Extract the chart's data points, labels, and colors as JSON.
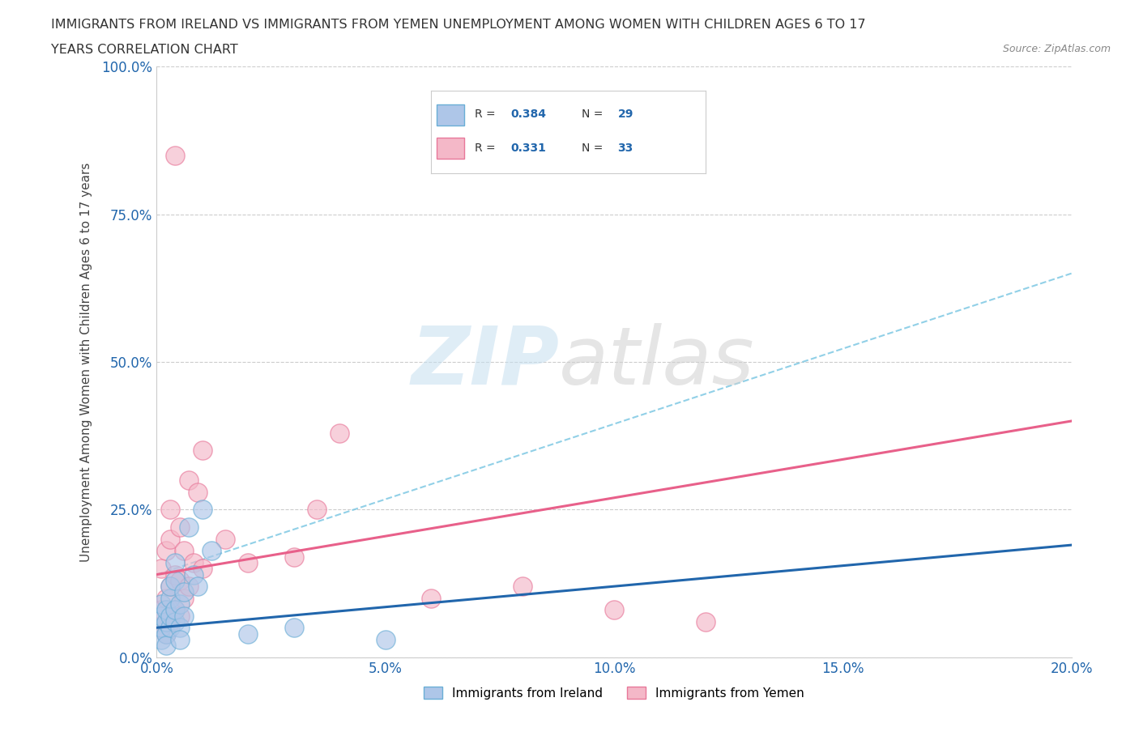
{
  "title_line1": "IMMIGRANTS FROM IRELAND VS IMMIGRANTS FROM YEMEN UNEMPLOYMENT AMONG WOMEN WITH CHILDREN AGES 6 TO 17",
  "title_line2": "YEARS CORRELATION CHART",
  "source": "Source: ZipAtlas.com",
  "ylabel": "Unemployment Among Women with Children Ages 6 to 17 years",
  "xlim": [
    0.0,
    0.2
  ],
  "ylim": [
    0.0,
    1.0
  ],
  "xticks": [
    0.0,
    0.05,
    0.1,
    0.15,
    0.2
  ],
  "xtick_labels": [
    "0.0%",
    "5.0%",
    "10.0%",
    "15.0%",
    "20.0%"
  ],
  "yticks": [
    0.0,
    0.25,
    0.5,
    0.75,
    1.0
  ],
  "ytick_labels": [
    "0.0%",
    "25.0%",
    "50.0%",
    "75.0%",
    "100.0%"
  ],
  "ireland_color": "#aec6e8",
  "ireland_edge_color": "#6aaed6",
  "yemen_color": "#f4b8c8",
  "yemen_edge_color": "#e8789a",
  "ireland_line_color": "#2166ac",
  "yemen_line_color": "#e8608a",
  "dashed_line_color": "#7ec8e3",
  "ireland_legend_label": "Immigrants from Ireland",
  "yemen_legend_label": "Immigrants from Yemen",
  "ireland_R": "0.384",
  "ireland_N": "29",
  "yemen_R": "0.331",
  "yemen_N": "33",
  "ireland_scatter_x": [
    0.001,
    0.001,
    0.001,
    0.001,
    0.002,
    0.002,
    0.002,
    0.002,
    0.003,
    0.003,
    0.003,
    0.003,
    0.004,
    0.004,
    0.004,
    0.004,
    0.005,
    0.005,
    0.005,
    0.006,
    0.006,
    0.007,
    0.008,
    0.009,
    0.01,
    0.012,
    0.02,
    0.03,
    0.05
  ],
  "ireland_scatter_y": [
    0.03,
    0.05,
    0.07,
    0.09,
    0.04,
    0.06,
    0.08,
    0.02,
    0.05,
    0.07,
    0.1,
    0.12,
    0.06,
    0.08,
    0.13,
    0.16,
    0.05,
    0.09,
    0.03,
    0.07,
    0.11,
    0.22,
    0.14,
    0.12,
    0.25,
    0.18,
    0.04,
    0.05,
    0.03
  ],
  "yemen_scatter_x": [
    0.001,
    0.001,
    0.001,
    0.002,
    0.002,
    0.002,
    0.003,
    0.003,
    0.003,
    0.003,
    0.004,
    0.004,
    0.004,
    0.005,
    0.005,
    0.005,
    0.006,
    0.006,
    0.007,
    0.007,
    0.008,
    0.009,
    0.01,
    0.01,
    0.015,
    0.02,
    0.03,
    0.04,
    0.06,
    0.08,
    0.1,
    0.12,
    0.035
  ],
  "yemen_scatter_y": [
    0.05,
    0.08,
    0.15,
    0.04,
    0.1,
    0.18,
    0.06,
    0.12,
    0.2,
    0.25,
    0.08,
    0.14,
    0.85,
    0.07,
    0.13,
    0.22,
    0.1,
    0.18,
    0.12,
    0.3,
    0.16,
    0.28,
    0.15,
    0.35,
    0.2,
    0.16,
    0.17,
    0.38,
    0.1,
    0.12,
    0.08,
    0.06,
    0.25
  ],
  "ireland_trendline": [
    0.05,
    0.19
  ],
  "yemen_trendline": [
    0.14,
    0.4
  ],
  "dashed_trendline": [
    0.14,
    0.65
  ]
}
